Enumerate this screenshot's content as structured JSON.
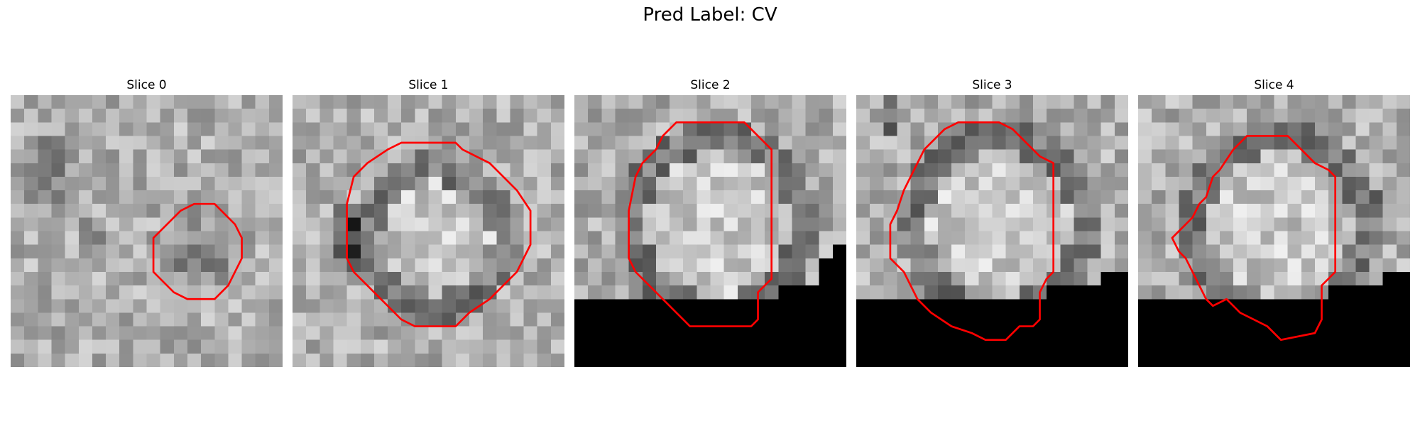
{
  "figure": {
    "title": "Pred Label: CV",
    "contour_color": "#ff0000",
    "slices": [
      {
        "label": "Slice 0",
        "kind": "dark-blob",
        "black_region": false,
        "contour": [
          [
            13.5,
            8
          ],
          [
            15,
            8
          ],
          [
            16.5,
            9.5
          ],
          [
            17,
            10.5
          ],
          [
            17,
            12
          ],
          [
            16.5,
            13
          ],
          [
            16,
            14
          ],
          [
            15,
            15
          ],
          [
            13,
            15
          ],
          [
            12,
            14.5
          ],
          [
            11,
            13.5
          ],
          [
            10.5,
            13
          ],
          [
            10.5,
            10.5
          ],
          [
            11.5,
            9.5
          ],
          [
            12.5,
            8.5
          ]
        ]
      },
      {
        "label": "Slice 1",
        "kind": "ring",
        "black_region": false,
        "contour": [
          [
            10.5,
            3.5
          ],
          [
            12,
            3.5
          ],
          [
            12.5,
            4
          ],
          [
            13.5,
            4.5
          ],
          [
            14.5,
            5
          ],
          [
            15,
            5.5
          ],
          [
            16.5,
            7
          ],
          [
            17.5,
            8.5
          ],
          [
            17.5,
            11
          ],
          [
            17,
            12
          ],
          [
            16.5,
            13
          ],
          [
            15.5,
            14
          ],
          [
            14.5,
            15
          ],
          [
            13,
            16
          ],
          [
            12,
            17
          ],
          [
            9,
            17
          ],
          [
            8,
            16.5
          ],
          [
            6.5,
            15
          ],
          [
            5.5,
            14
          ],
          [
            4.5,
            13
          ],
          [
            4,
            12
          ],
          [
            4,
            8
          ],
          [
            4.5,
            6
          ],
          [
            5.5,
            5
          ],
          [
            7,
            4
          ],
          [
            8,
            3.5
          ]
        ]
      },
      {
        "label": "Slice 2",
        "kind": "ring-masked",
        "black_region": true,
        "contour": [
          [
            7.5,
            2
          ],
          [
            12.5,
            2
          ],
          [
            13,
            2.5
          ],
          [
            13.5,
            3
          ],
          [
            14,
            3.5
          ],
          [
            14.5,
            4
          ],
          [
            14.5,
            13.5
          ],
          [
            14,
            14
          ],
          [
            13.5,
            14.5
          ],
          [
            13.5,
            16.5
          ],
          [
            13,
            17
          ],
          [
            8.5,
            17
          ],
          [
            8,
            16.5
          ],
          [
            7.5,
            16
          ],
          [
            6.5,
            15
          ],
          [
            5.5,
            14
          ],
          [
            4.5,
            13
          ],
          [
            4,
            12
          ],
          [
            4,
            8.5
          ],
          [
            4.5,
            6
          ],
          [
            5,
            5
          ],
          [
            6,
            4
          ],
          [
            6.5,
            3
          ],
          [
            7,
            2.5
          ]
        ]
      },
      {
        "label": "Slice 3",
        "kind": "ring-masked",
        "black_region": true,
        "contour": [
          [
            7.5,
            2
          ],
          [
            10.5,
            2
          ],
          [
            11.5,
            2.5
          ],
          [
            12.5,
            3.5
          ],
          [
            13.5,
            4.5
          ],
          [
            14.5,
            5
          ],
          [
            14.5,
            13
          ],
          [
            14,
            13.5
          ],
          [
            13.5,
            14.5
          ],
          [
            13.5,
            16.5
          ],
          [
            13,
            17
          ],
          [
            12,
            17
          ],
          [
            11,
            18
          ],
          [
            9.5,
            18
          ],
          [
            8.5,
            17.5
          ],
          [
            7,
            17
          ],
          [
            5.5,
            16
          ],
          [
            4.5,
            15
          ],
          [
            4,
            14
          ],
          [
            3.5,
            13
          ],
          [
            2.5,
            12
          ],
          [
            2.5,
            9.5
          ],
          [
            3,
            8.5
          ],
          [
            3.5,
            7
          ],
          [
            4,
            6
          ],
          [
            4.5,
            5
          ],
          [
            5,
            4
          ],
          [
            6,
            3
          ],
          [
            6.5,
            2.5
          ]
        ]
      },
      {
        "label": "Slice 4",
        "kind": "ring-masked",
        "black_region": true,
        "contour": [
          [
            8,
            3
          ],
          [
            11,
            3
          ],
          [
            12,
            4
          ],
          [
            13,
            5
          ],
          [
            14,
            5.5
          ],
          [
            14.5,
            6
          ],
          [
            14.5,
            13
          ],
          [
            14,
            13.5
          ],
          [
            13.5,
            14
          ],
          [
            13.5,
            16.5
          ],
          [
            13,
            17.5
          ],
          [
            10.5,
            18
          ],
          [
            10,
            17.5
          ],
          [
            9.5,
            17
          ],
          [
            8.5,
            16.5
          ],
          [
            7.5,
            16
          ],
          [
            6.5,
            15
          ],
          [
            5.5,
            15.5
          ],
          [
            5,
            15
          ],
          [
            4.5,
            14
          ],
          [
            4,
            13
          ],
          [
            3.5,
            12
          ],
          [
            3,
            11.5
          ],
          [
            2.5,
            10.5
          ],
          [
            3,
            10
          ],
          [
            3.5,
            9.5
          ],
          [
            4,
            9
          ],
          [
            4.5,
            8
          ],
          [
            5,
            7.5
          ],
          [
            5.5,
            6
          ],
          [
            6,
            5.5
          ],
          [
            7,
            4
          ],
          [
            7.5,
            3.5
          ]
        ]
      }
    ]
  }
}
